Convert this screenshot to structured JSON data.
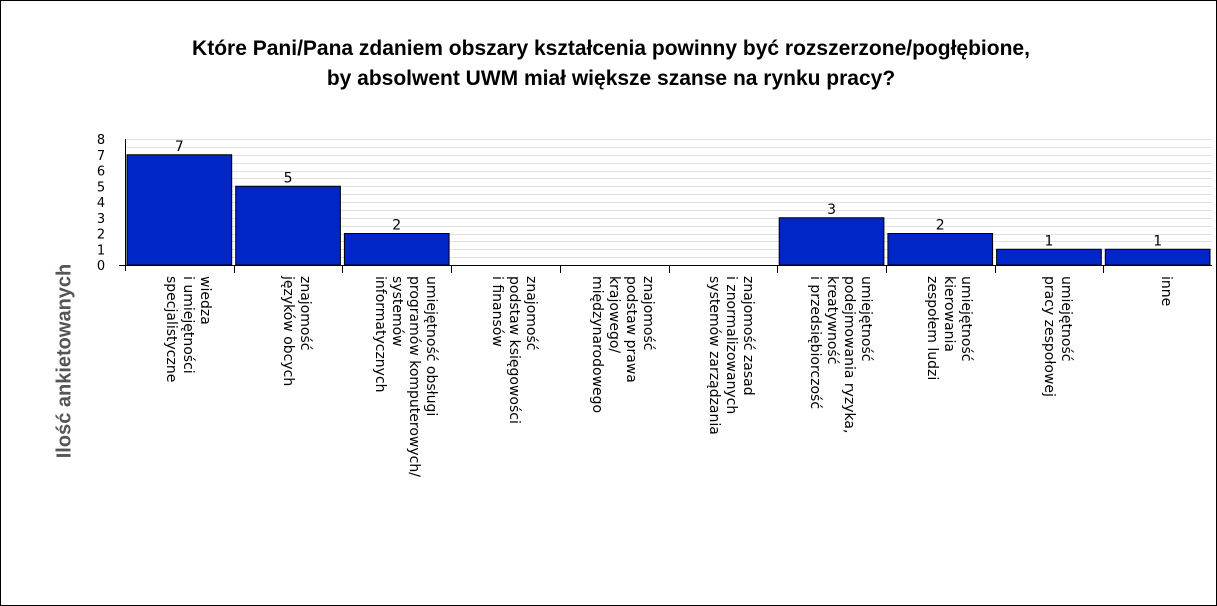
{
  "chart_data": {
    "type": "bar",
    "title_lines": [
      "Które Pani/Pana zdaniem obszary kształcenia powinny być rozszerzone/pogłębione,",
      "by absolwent UWM miał większe szanse na rynku pracy?"
    ],
    "ylabel": "Ilość ankietowanych",
    "xlabel": "",
    "ylim": [
      0,
      8
    ],
    "y_ticks": [
      "0",
      "1",
      "2",
      "3",
      "4",
      "5",
      "6",
      "7",
      "8"
    ],
    "grid": true,
    "legend": "none",
    "bar_color": "#0026c8",
    "categories": [
      [
        "wiedza",
        "i umiejętności",
        "specjalistyczne"
      ],
      [
        "znajomość",
        "języków obcych"
      ],
      [
        "umiejętność obsługi",
        "programów komputerowych/",
        "systemów",
        "informatycznych"
      ],
      [
        "znajomość",
        "podstaw księgowości",
        "i finansów"
      ],
      [
        "znajomość",
        "podstaw prawa",
        "krajowego/",
        "międzynarodowego"
      ],
      [
        "znajomość zasad",
        "i znormalizowanych",
        "systemów zarządzania"
      ],
      [
        "umiejętność",
        "podejmowania ryzyka,",
        "kreatywność",
        "i przedsiębiorczość"
      ],
      [
        "umiejętność",
        "kierowania",
        "zespołem ludzi"
      ],
      [
        "umiejętność",
        "pracy zespołowej"
      ],
      [
        "inne"
      ]
    ],
    "values": [
      7,
      5,
      2,
      0,
      0,
      0,
      3,
      2,
      1,
      1
    ],
    "data_labels": [
      "7",
      "5",
      "2",
      "",
      "",
      "",
      "3",
      "2",
      "1",
      "1"
    ]
  }
}
